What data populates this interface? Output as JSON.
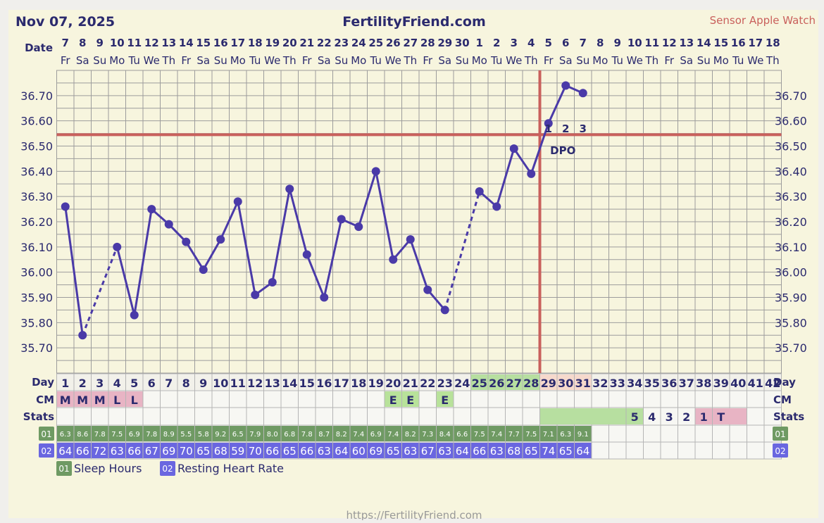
{
  "header": {
    "date": "Nov 07, 2025",
    "site": "FertilityFriend.com",
    "sensor": "Sensor Apple Watch"
  },
  "footer": {
    "url": "https://FertilityFriend.com"
  },
  "colors": {
    "background": "#f7f5de",
    "grid": "#9c9c9c",
    "navy": "#2b2a6e",
    "line": "#4a3aa8",
    "coverline": "#c9605c",
    "ovulation": "#c9605c",
    "cm": "#e8b4c4",
    "egg_white": "#b8e29a",
    "cycle_day_green": "#b7dfa0",
    "luteal_pink": "#f6d9cc",
    "sleep": "#6f9a63",
    "hr": "#6a66e0",
    "sensor_red": "#c9605c"
  },
  "labels": {
    "date_row": "Date",
    "day_row": "Day",
    "cm_row": "CM",
    "stats_row": "Stats",
    "row01": "01",
    "row02": "02",
    "dpo": "DPO"
  },
  "legend": [
    {
      "code": "01",
      "label": "Sleep Hours"
    },
    {
      "code": "02",
      "label": "Resting Heart Rate"
    }
  ],
  "dates": [
    "7",
    "8",
    "9",
    "10",
    "11",
    "12",
    "13",
    "14",
    "15",
    "16",
    "17",
    "18",
    "19",
    "20",
    "21",
    "22",
    "23",
    "24",
    "25",
    "26",
    "27",
    "28",
    "29",
    "30",
    "1",
    "2",
    "3",
    "4",
    "5",
    "6",
    "7",
    "8",
    "9",
    "10",
    "11",
    "12",
    "13",
    "14",
    "15",
    "16",
    "17",
    "18"
  ],
  "weekdays": [
    "Fr",
    "Sa",
    "Su",
    "Mo",
    "Tu",
    "We",
    "Th",
    "Fr",
    "Sa",
    "Su",
    "Mo",
    "Tu",
    "We",
    "Th",
    "Fr",
    "Sa",
    "Su",
    "Mo",
    "Tu",
    "We",
    "Th",
    "Fr",
    "Sa",
    "Su",
    "Mo",
    "Tu",
    "We",
    "Th",
    "Fr",
    "Sa",
    "Su",
    "Mo",
    "Tu",
    "We",
    "Th",
    "Fr",
    "Sa",
    "Su",
    "Mo",
    "Tu",
    "We",
    "Th"
  ],
  "cm": [
    "M",
    "M",
    "M",
    "L",
    "L",
    "",
    "",
    "",
    "",
    "",
    "",
    "",
    "",
    "",
    "",
    "",
    "",
    "",
    "",
    "E",
    "E",
    "",
    "E",
    "",
    "",
    "",
    "",
    "",
    "",
    "",
    "",
    "",
    "",
    "",
    "",
    "",
    "",
    "",
    "",
    "",
    "",
    ""
  ],
  "dpo_numbers": [
    "1",
    "2",
    "3"
  ],
  "stats": {
    "countdown": [
      "5",
      "4",
      "3",
      "2",
      "1"
    ],
    "test": "T"
  },
  "chart_data": {
    "type": "line",
    "title": "FertilityFriend.com",
    "subtitle": "Nov 07, 2025",
    "xlabel": "Day",
    "ylabel": "",
    "x": [
      1,
      2,
      3,
      4,
      5,
      6,
      7,
      8,
      9,
      10,
      11,
      12,
      13,
      14,
      15,
      16,
      17,
      18,
      19,
      20,
      21,
      22,
      23,
      24,
      25,
      26,
      27,
      28,
      29,
      30,
      31,
      32,
      33,
      34,
      35,
      36,
      37,
      38,
      39,
      40,
      41,
      42
    ],
    "series": [
      {
        "values": [
          36.26,
          35.75,
          null,
          36.1,
          35.83,
          36.25,
          36.19,
          36.12,
          36.01,
          36.13,
          36.28,
          35.91,
          35.96,
          36.33,
          36.07,
          35.9,
          36.21,
          36.18,
          36.4,
          36.05,
          36.13,
          35.93,
          35.85,
          null,
          36.32,
          36.26,
          36.49,
          36.39,
          36.59,
          36.74,
          36.71,
          null,
          null,
          null,
          null,
          null,
          null,
          null,
          null,
          null,
          null,
          null
        ]
      }
    ],
    "y_ticks": [
      "35.70",
      "35.80",
      "35.90",
      "36.00",
      "36.10",
      "36.20",
      "36.30",
      "36.40",
      "36.50",
      "36.60",
      "36.70"
    ],
    "ylim": [
      35.6,
      36.8
    ],
    "coverline": 36.545,
    "ovulation_day": 28,
    "sleep_hours": [
      "6.3",
      "8.6",
      "7.8",
      "7.5",
      "6.9",
      "7.8",
      "8.9",
      "5.5",
      "5.8",
      "9.2",
      "6.5",
      "7.9",
      "8.0",
      "6.8",
      "7.8",
      "8.7",
      "8.2",
      "7.4",
      "6.9",
      "7.4",
      "8.2",
      "7.3",
      "8.4",
      "6.6",
      "7.5",
      "7.4",
      "7.7",
      "7.5",
      "7.1",
      "6.3",
      "9.1"
    ],
    "resting_heart_rate": [
      "64",
      "66",
      "72",
      "63",
      "66",
      "67",
      "69",
      "70",
      "65",
      "68",
      "59",
      "70",
      "66",
      "65",
      "66",
      "63",
      "64",
      "60",
      "69",
      "65",
      "63",
      "67",
      "63",
      "64",
      "66",
      "63",
      "68",
      "65",
      "74",
      "65",
      "64"
    ],
    "grid": true
  }
}
